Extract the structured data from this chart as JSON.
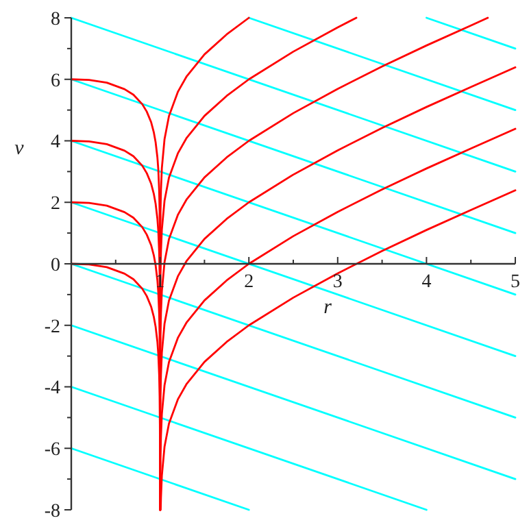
{
  "chart_data": {
    "type": "line",
    "xlabel": "r",
    "ylabel": "v",
    "xlim": [
      0,
      5
    ],
    "ylim": [
      -8,
      8
    ],
    "xticks": [
      {
        "value": 0.5,
        "label": null
      },
      1,
      {
        "value": 1.5,
        "label": null
      },
      2,
      {
        "value": 2.5,
        "label": null
      },
      3,
      {
        "value": 3.5,
        "label": null
      },
      4,
      {
        "value": 4.5,
        "label": null
      },
      5
    ],
    "yticks": [
      -8,
      {
        "value": -7,
        "label": null
      },
      -6,
      {
        "value": -5,
        "label": null
      },
      -4,
      {
        "value": -3,
        "label": null
      },
      -2,
      {
        "value": -1,
        "label": null
      },
      0,
      {
        "value": 1,
        "label": null
      },
      2,
      {
        "value": 3,
        "label": null
      },
      4,
      {
        "value": 5,
        "label": null
      },
      6,
      {
        "value": 7,
        "label": null
      },
      8
    ],
    "grid": false,
    "line_style": "solid",
    "marker": "none",
    "series": [
      {
        "color": "#00ffff",
        "x": [
          0,
          2
        ],
        "values": [
          -6,
          -8
        ]
      },
      {
        "color": "#00ffff",
        "x": [
          0,
          4
        ],
        "values": [
          -4,
          -8
        ]
      },
      {
        "color": "#00ffff",
        "x": [
          0,
          5
        ],
        "values": [
          -2,
          -7
        ]
      },
      {
        "color": "#00ffff",
        "x": [
          0,
          5
        ],
        "values": [
          0,
          -5
        ]
      },
      {
        "color": "#00ffff",
        "x": [
          0,
          5
        ],
        "values": [
          2,
          -3
        ]
      },
      {
        "color": "#00ffff",
        "x": [
          0,
          5
        ],
        "values": [
          4,
          -1
        ]
      },
      {
        "color": "#00ffff",
        "x": [
          0,
          5
        ],
        "values": [
          6,
          1
        ]
      },
      {
        "color": "#00ffff",
        "x": [
          0,
          5
        ],
        "values": [
          8,
          3
        ]
      },
      {
        "color": "#00ffff",
        "x": [
          2,
          5
        ],
        "values": [
          8,
          5
        ]
      },
      {
        "color": "#00ffff",
        "x": [
          4,
          5
        ],
        "values": [
          8,
          7
        ]
      },
      {
        "color": "#ff0000",
        "x": [
          0,
          0.2,
          0.4,
          0.6,
          0.7,
          0.8,
          0.85,
          0.9,
          0.93,
          0.95,
          0.97,
          0.98,
          0.99,
          0.995,
          0.998,
          0.999,
          0.9995,
          0.9999
        ],
        "values": [
          0,
          -0.02,
          -0.11,
          -0.32,
          -0.5,
          -0.81,
          -1.05,
          -1.4,
          -1.73,
          -2.05,
          -2.54,
          -2.93,
          -3.62,
          -4.3,
          -5.22,
          -5.91,
          -6.6,
          -8
        ]
      },
      {
        "color": "#ff0000",
        "x": [
          0,
          0.2,
          0.4,
          0.6,
          0.7,
          0.8,
          0.85,
          0.9,
          0.93,
          0.95,
          0.97,
          0.98,
          0.99,
          0.995,
          0.998,
          0.999,
          0.9999,
          0.99999
        ],
        "values": [
          2,
          1.98,
          1.89,
          1.68,
          1.5,
          1.19,
          0.95,
          0.6,
          0.27,
          -0.05,
          -0.54,
          -0.93,
          -1.62,
          -2.3,
          -3.22,
          -3.91,
          -6.21,
          -8
        ]
      },
      {
        "color": "#ff0000",
        "x": [
          0,
          0.2,
          0.4,
          0.6,
          0.7,
          0.8,
          0.85,
          0.9,
          0.93,
          0.95,
          0.97,
          0.98,
          0.99,
          0.995,
          0.998,
          0.999,
          0.9999,
          0.99999
        ],
        "values": [
          4,
          3.98,
          3.89,
          3.68,
          3.5,
          3.19,
          2.95,
          2.6,
          2.27,
          1.95,
          1.46,
          1.07,
          0.38,
          -0.3,
          -1.22,
          -1.91,
          -4.21,
          -8
        ]
      },
      {
        "color": "#ff0000",
        "x": [
          0,
          0.2,
          0.4,
          0.6,
          0.7,
          0.8,
          0.85,
          0.9,
          0.93,
          0.95,
          0.97,
          0.98,
          0.99,
          0.995,
          0.998,
          0.999,
          0.9999,
          0.99999
        ],
        "values": [
          6,
          5.98,
          5.89,
          5.68,
          5.5,
          5.19,
          4.95,
          4.6,
          4.27,
          3.95,
          3.46,
          3.07,
          2.38,
          1.7,
          0.78,
          0.09,
          -2.21,
          -8
        ]
      },
      {
        "color": "#ff0000",
        "x": [
          1.0067,
          1.01,
          1.02,
          1.05,
          1.1,
          1.2,
          1.3,
          1.5,
          1.75,
          2,
          2.5,
          3,
          3.5,
          4,
          4.5,
          5
        ],
        "values": [
          -8,
          -7.6,
          -6.89,
          -5.95,
          -5.2,
          -4.41,
          -3.9,
          -3.19,
          -2.54,
          -2,
          -1.1,
          -0.31,
          0.42,
          1.1,
          1.75,
          2.39
        ]
      },
      {
        "color": "#ff0000",
        "x": [
          1.0009,
          1.002,
          1.005,
          1.01,
          1.02,
          1.05,
          1.1,
          1.2,
          1.3,
          1.5,
          1.75,
          2,
          2.5,
          3,
          3.5,
          4,
          4.5,
          5
        ],
        "values": [
          -8,
          -7.21,
          -6.29,
          -5.6,
          -4.89,
          -3.95,
          -3.2,
          -2.41,
          -1.9,
          -1.19,
          -0.54,
          0,
          0.9,
          1.69,
          2.42,
          3.1,
          3.75,
          4.39
        ]
      },
      {
        "color": "#ff0000",
        "x": [
          1.00012,
          1.0005,
          1.001,
          1.002,
          1.005,
          1.01,
          1.02,
          1.05,
          1.1,
          1.2,
          1.3,
          1.5,
          1.75,
          2,
          2.5,
          3,
          3.5,
          4,
          4.5,
          5
        ],
        "values": [
          -8,
          -6.6,
          -5.91,
          -5.21,
          -4.29,
          -3.6,
          -2.89,
          -1.95,
          -1.2,
          -0.41,
          0.1,
          0.81,
          1.46,
          2,
          2.9,
          3.69,
          4.42,
          5.1,
          5.75,
          6.39
        ]
      },
      {
        "color": "#ff0000",
        "x": [
          1.00002,
          1.0001,
          1.0005,
          1.001,
          1.002,
          1.005,
          1.01,
          1.02,
          1.05,
          1.1,
          1.2,
          1.3,
          1.5,
          1.75,
          2,
          2.5,
          3,
          3.5,
          4,
          4.5,
          4.69
        ],
        "values": [
          -8,
          -6.21,
          -4.6,
          -3.91,
          -3.21,
          -2.29,
          -1.6,
          -0.89,
          0.05,
          0.8,
          1.59,
          2.1,
          2.81,
          3.46,
          4,
          4.9,
          5.69,
          6.42,
          7.1,
          7.75,
          8
        ]
      },
      {
        "color": "#ff0000",
        "x": [
          1.00001,
          1.0001,
          1.0005,
          1.001,
          1.002,
          1.005,
          1.01,
          1.02,
          1.05,
          1.1,
          1.2,
          1.3,
          1.5,
          1.75,
          2,
          2.5,
          3,
          3.21
        ],
        "values": [
          -8,
          -4.21,
          -2.6,
          -1.91,
          -1.21,
          -0.29,
          0.4,
          1.11,
          2.05,
          2.8,
          3.59,
          4.1,
          4.81,
          5.46,
          6,
          6.9,
          7.69,
          8
        ]
      },
      {
        "color": "#ff0000",
        "x": [
          1.000001,
          1.00001,
          1.0001,
          1.0005,
          1.001,
          1.002,
          1.005,
          1.01,
          1.02,
          1.05,
          1.1,
          1.2,
          1.3,
          1.5,
          1.75,
          2
        ],
        "values": [
          -8,
          -4.51,
          -2.21,
          -0.6,
          0.09,
          0.79,
          1.71,
          2.4,
          3.11,
          4.05,
          4.8,
          5.59,
          6.1,
          6.81,
          7.46,
          8
        ]
      }
    ]
  }
}
